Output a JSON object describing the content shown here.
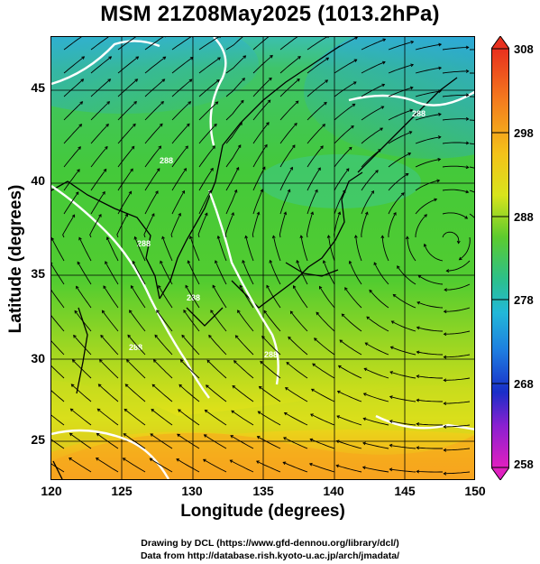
{
  "title": "MSM 21Z08May2025 (1013.2hPa)",
  "map": {
    "xlabel": "Longitude (degrees)",
    "ylabel": "Latitude  (degrees)",
    "lon_range": [
      120,
      150
    ],
    "lat_range": [
      22.6,
      48
    ],
    "lon_ticks": [
      "120",
      "125",
      "130",
      "135",
      "140",
      "145",
      "150"
    ],
    "lat_ticks": [
      "25",
      "30",
      "35",
      "40",
      "45"
    ],
    "contour_labels": [
      "288",
      "288",
      "288",
      "288",
      "288",
      "288"
    ]
  },
  "colorbar": {
    "range": [
      258,
      308
    ],
    "ticks": [
      "308",
      "298",
      "288",
      "278",
      "268",
      "258"
    ]
  },
  "credits": {
    "line1": "Drawing by DCL (https://www.gfd-dennou.org/library/dcl/)",
    "line2": "Data from http://database.rish.kyoto-u.ac.jp/arch/jmadata/"
  },
  "colors": {
    "cold": "#2aa8e0",
    "mid": "#46c94a",
    "warm": "#e8e41a",
    "hot": "#f6a020",
    "contour": "#ffffff",
    "streamline": "#000000"
  }
}
